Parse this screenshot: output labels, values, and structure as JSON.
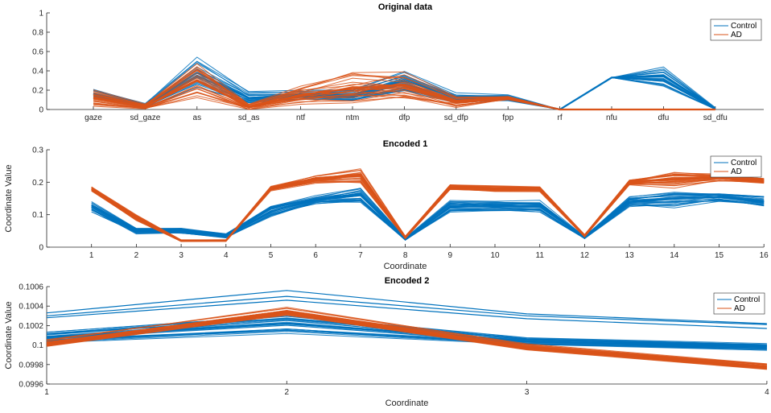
{
  "figure": {
    "charts": [
      {
        "title": "Original data",
        "xlabel": "",
        "ylabel": ""
      },
      {
        "title": "Encoded 1",
        "xlabel": "Coordinate",
        "ylabel": "Coordinate Value"
      },
      {
        "title": "Encoded 2",
        "xlabel": "Coordinate",
        "ylabel": "Coordinate Value"
      }
    ],
    "legend": {
      "control": "Control",
      "ad": "AD"
    }
  },
  "colors": {
    "control": "#0072BD",
    "ad": "#D95319"
  },
  "chart_data": [
    {
      "type": "line",
      "title": "Original data",
      "xlabel": "",
      "ylabel": "",
      "categories": [
        "gaze",
        "sd_gaze",
        "as",
        "sd_as",
        "ntf",
        "ntm",
        "dfp",
        "sd_dfp",
        "fpp",
        "rf",
        "nfu",
        "dfu",
        "sd_dfu"
      ],
      "ylim": [
        0,
        1
      ],
      "yticks": [
        0,
        0.2,
        0.4,
        0.6,
        0.8,
        1
      ],
      "ytick_labels": [
        "0",
        "0.2",
        "0.4",
        "0.6",
        "0.8",
        "1"
      ],
      "legend_position": "top-right",
      "series": [
        {
          "name": "Control",
          "values": [
            0.16,
            0.04,
            0.38,
            0.12,
            0.15,
            0.15,
            0.3,
            0.12,
            0.12,
            0,
            0.33,
            0.35,
            0.01
          ],
          "spread": [
            0.06,
            0.03,
            0.2,
            0.08,
            0.06,
            0.08,
            0.15,
            0.06,
            0.04,
            0,
            0,
            0.14,
            0.01
          ]
        },
        {
          "name": "AD",
          "values": [
            0.12,
            0.03,
            0.3,
            0.03,
            0.15,
            0.22,
            0.25,
            0.08,
            0.12,
            0,
            0,
            0,
            0
          ],
          "spread": [
            0.1,
            0.03,
            0.22,
            0.03,
            0.1,
            0.18,
            0.18,
            0.06,
            0.02,
            0,
            0,
            0,
            0
          ]
        }
      ]
    },
    {
      "type": "line",
      "title": "Encoded 1",
      "xlabel": "Coordinate",
      "ylabel": "Coordinate Value",
      "x": [
        1,
        2,
        3,
        4,
        5,
        6,
        7,
        8,
        9,
        10,
        11,
        12,
        13,
        14,
        15,
        16
      ],
      "xticks": [
        1,
        2,
        3,
        4,
        5,
        6,
        7,
        8,
        9,
        10,
        11,
        12,
        13,
        14,
        15,
        16
      ],
      "xtick_labels": [
        "1",
        "2",
        "3",
        "4",
        "5",
        "6",
        "7",
        "8",
        "9",
        "10",
        "11",
        "12",
        "13",
        "14",
        "15",
        "16"
      ],
      "xlim": [
        0,
        16
      ],
      "ylim": [
        0,
        0.3
      ],
      "yticks": [
        0,
        0.1,
        0.2,
        0.3
      ],
      "ytick_labels": [
        "0",
        "0.1",
        "0.2",
        "0.3"
      ],
      "legend_position": "top-right",
      "series": [
        {
          "name": "Control",
          "values": [
            0.125,
            0.05,
            0.05,
            0.035,
            0.11,
            0.145,
            0.16,
            0.025,
            0.125,
            0.125,
            0.125,
            0.03,
            0.14,
            0.15,
            0.155,
            0.14
          ],
          "spread": [
            0.02,
            0.01,
            0.01,
            0.008,
            0.02,
            0.015,
            0.03,
            0.005,
            0.02,
            0.02,
            0.02,
            0.005,
            0.02,
            0.03,
            0.02,
            0.02
          ]
        },
        {
          "name": "AD",
          "values": [
            0.18,
            0.09,
            0.02,
            0.02,
            0.18,
            0.21,
            0.22,
            0.03,
            0.185,
            0.18,
            0.18,
            0.035,
            0.2,
            0.21,
            0.215,
            0.205
          ],
          "spread": [
            0.01,
            0.01,
            0.003,
            0.003,
            0.01,
            0.015,
            0.03,
            0.005,
            0.01,
            0.01,
            0.01,
            0.005,
            0.01,
            0.03,
            0.015,
            0.01
          ]
        }
      ]
    },
    {
      "type": "line",
      "title": "Encoded 2",
      "xlabel": "Coordinate",
      "ylabel": "Coordinate Value",
      "x": [
        1,
        2,
        3,
        4
      ],
      "xticks": [
        1,
        2,
        3,
        4
      ],
      "xtick_labels": [
        "1",
        "2",
        "3",
        "4"
      ],
      "xlim": [
        1,
        4
      ],
      "ylim": [
        0.0996,
        0.1006
      ],
      "yticks": [
        0.0996,
        0.0998,
        0.1,
        0.1002,
        0.1004,
        0.1006
      ],
      "ytick_labels": [
        "0.0996",
        "0.0998",
        "0.1",
        "0.1002",
        "0.1004",
        "0.1006"
      ],
      "legend_position": "top-right",
      "series": [
        {
          "name": "Control",
          "values": [
            0.10008,
            0.10022,
            0.10004,
            0.09998
          ],
          "spread": [
            6e-05,
            0.00012,
            4e-05,
            4e-05
          ],
          "outliers": [
            [
              0.10033,
              0.10056,
              0.10032,
              0.10022
            ],
            [
              0.1003,
              0.1005,
              0.1003,
              0.10021
            ],
            [
              0.10028,
              0.10046,
              0.10027,
              0.10017
            ]
          ]
        },
        {
          "name": "AD",
          "values": [
            0.10002,
            0.10034,
            0.09998,
            0.09978
          ],
          "spread": [
            4e-05,
            5e-05,
            4e-05,
            4e-05
          ]
        }
      ]
    }
  ]
}
